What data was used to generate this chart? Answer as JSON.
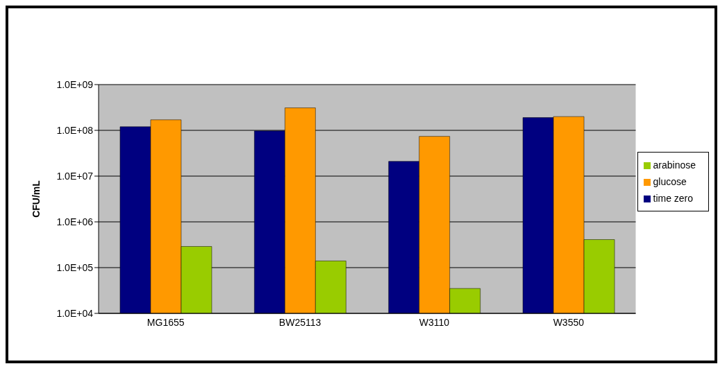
{
  "chart_data": {
    "type": "bar",
    "ylabel": "CFU/mL",
    "categories": [
      "MG1655",
      "BW25113",
      "W3110",
      "W3550"
    ],
    "series": [
      {
        "name": "time zero",
        "color": "#000080",
        "values": [
          120000000.0,
          97000000.0,
          21000000.0,
          190000000.0
        ]
      },
      {
        "name": "glucose",
        "color": "#ff9900",
        "values": [
          170000000.0,
          310000000.0,
          74000000.0,
          200000000.0
        ]
      },
      {
        "name": "arabinose",
        "color": "#99cc00",
        "values": [
          290000.0,
          140000.0,
          35000.0,
          410000.0
        ]
      }
    ],
    "log": "y",
    "ylim": [
      10000,
      1000000000
    ],
    "yticks": [
      {
        "value": 10000,
        "label": "1.0E+04"
      },
      {
        "value": 100000,
        "label": "1.0E+05"
      },
      {
        "value": 1000000,
        "label": "1.0E+06"
      },
      {
        "value": 10000000,
        "label": "1.0E+07"
      },
      {
        "value": 100000000,
        "label": "1.0E+08"
      },
      {
        "value": 1000000000,
        "label": "1.0E+09"
      }
    ],
    "grid": "y",
    "legend": "right"
  }
}
